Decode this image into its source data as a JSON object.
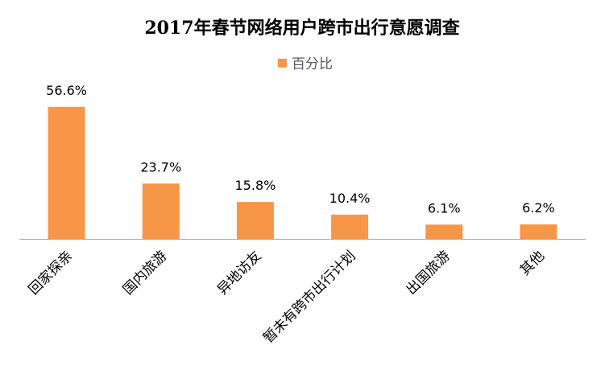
{
  "chart_data": {
    "type": "bar",
    "title": "2017年春节网络用户跨市出行意愿调查",
    "categories": [
      "回家探亲",
      "国内旅游",
      "异地访友",
      "暂未有跨市出行计划",
      "出国旅游",
      "其他"
    ],
    "series": [
      {
        "name": "百分比",
        "values": [
          56.6,
          23.7,
          15.8,
          10.4,
          6.1,
          6.2
        ],
        "labels": [
          "56.6%",
          "23.7%",
          "15.8%",
          "10.4%",
          "6.1%",
          "6.2%"
        ],
        "color": "#F79646"
      }
    ],
    "xlabel": "",
    "ylabel": "",
    "ylim": [
      0,
      60
    ],
    "grid": false,
    "legend_position": "top",
    "axis_color": "#A6A6A6",
    "label_rotation_deg": -45
  }
}
